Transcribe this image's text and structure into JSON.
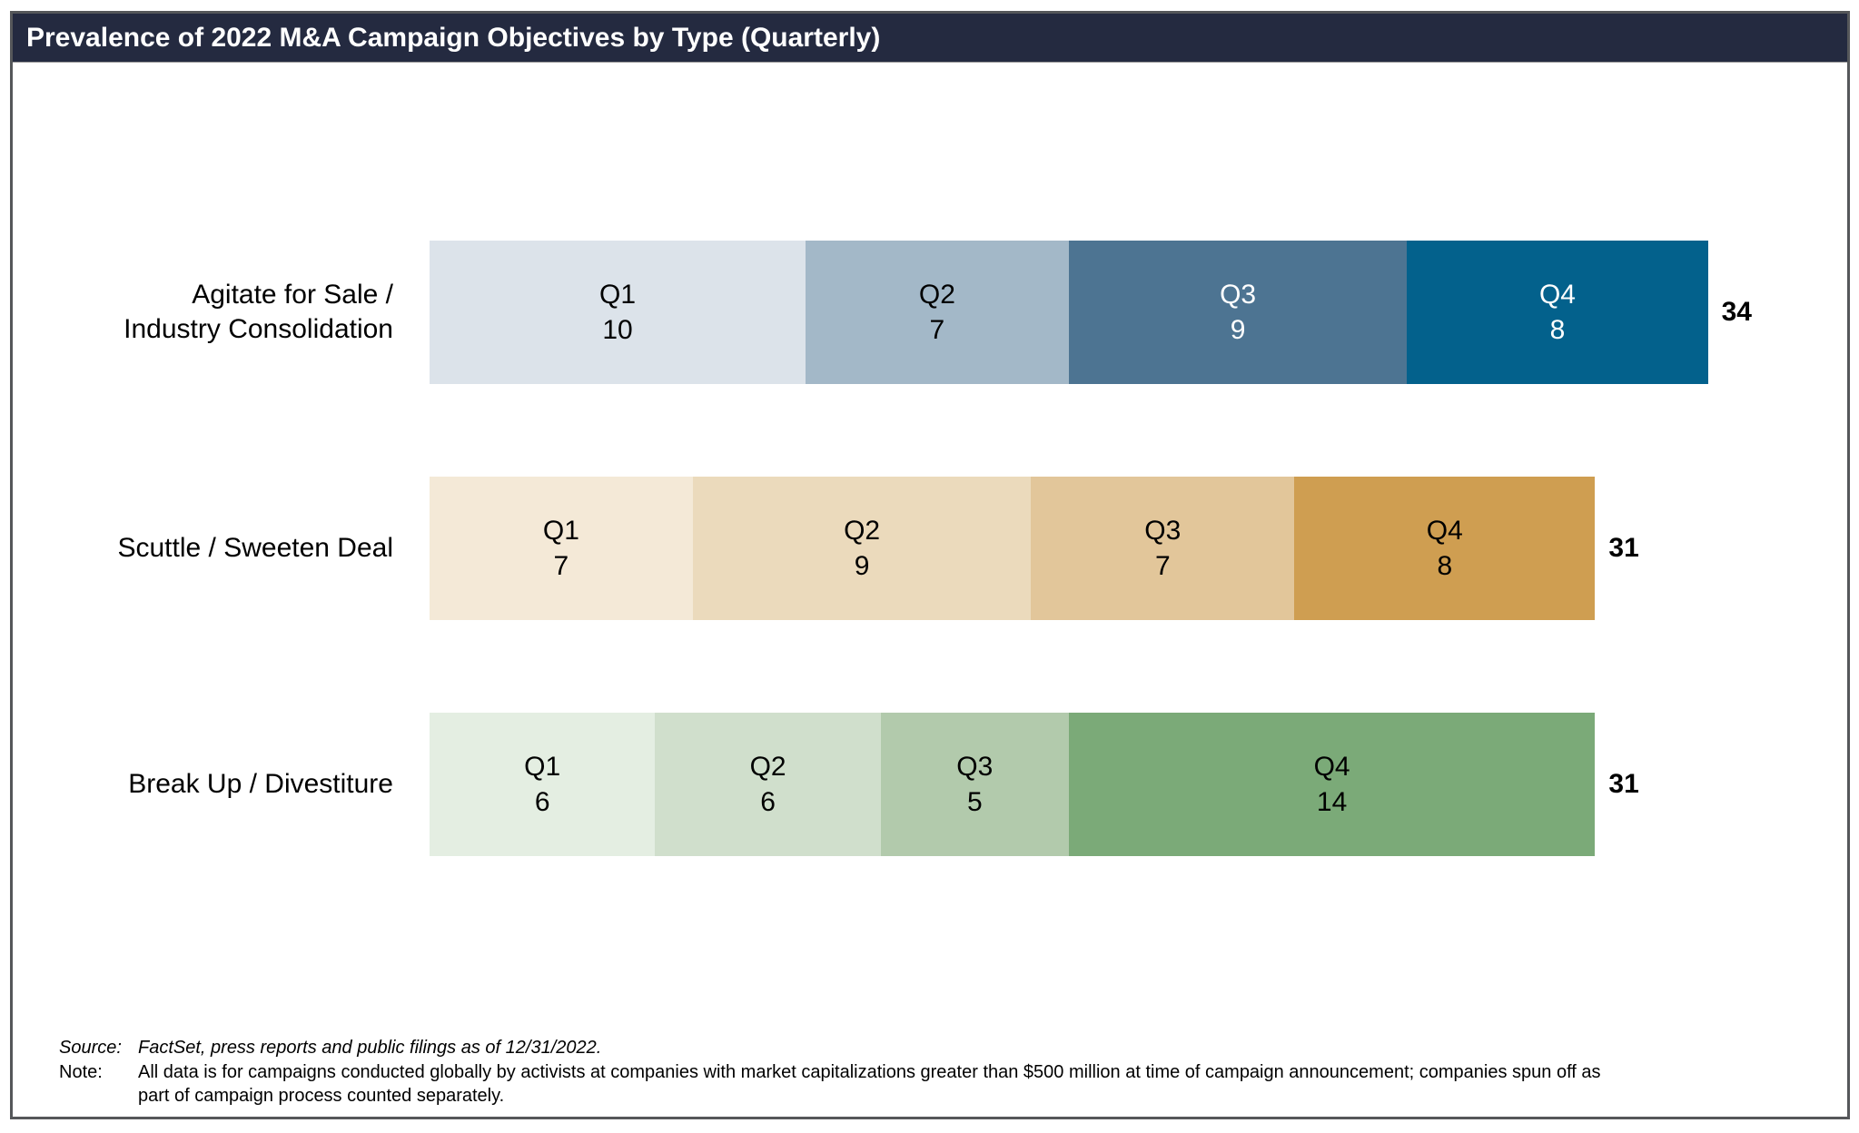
{
  "title": "Prevalence of 2022 M&A Campaign Objectives by Type (Quarterly)",
  "footer": {
    "source_label": "Source:",
    "source_text": "FactSet, press reports and public filings as of 12/31/2022.",
    "note_label": "Note:",
    "note_line1": "All data is for campaigns conducted globally by activists at companies with market capitalizations greater than $500 million at time of campaign announcement; companies spun off as",
    "note_line2": "part of campaign process counted separately."
  },
  "colors": {
    "title_bar_background": "#242a40",
    "title_text": "#ffffff",
    "frame_border": "#55575a"
  },
  "chart_data": {
    "type": "bar",
    "variant": "horizontal-stacked",
    "title": "Prevalence of 2022 M&A Campaign Objectives by Type (Quarterly)",
    "categories": [
      "Agitate for Sale / Industry Consolidation",
      "Scuttle / Sweeten Deal",
      "Break Up / Divestiture"
    ],
    "series": [
      {
        "name": "Q1",
        "values": [
          10,
          7,
          6
        ]
      },
      {
        "name": "Q2",
        "values": [
          7,
          9,
          6
        ]
      },
      {
        "name": "Q3",
        "values": [
          9,
          7,
          5
        ]
      },
      {
        "name": "Q4",
        "values": [
          8,
          8,
          14
        ]
      }
    ],
    "totals": [
      34,
      31,
      31
    ],
    "legend_position": "none",
    "grid": false,
    "rows": [
      {
        "label_lines": [
          "Agitate for Sale /",
          "Industry Consolidation"
        ],
        "total": "34",
        "segments": [
          {
            "quarter": "Q1",
            "value": 10,
            "color": "#dce3ea",
            "text_color": "#000000"
          },
          {
            "quarter": "Q2",
            "value": 7,
            "color": "#a3b8c8",
            "text_color": "#000000"
          },
          {
            "quarter": "Q3",
            "value": 9,
            "color": "#4d7492",
            "text_color": "#ffffff"
          },
          {
            "quarter": "Q4",
            "value": 8,
            "color": "#03618c",
            "text_color": "#ffffff"
          }
        ]
      },
      {
        "label_lines": [
          "Scuttle / Sweeten Deal"
        ],
        "total": "31",
        "segments": [
          {
            "quarter": "Q1",
            "value": 7,
            "color": "#f4e9d7",
            "text_color": "#000000"
          },
          {
            "quarter": "Q2",
            "value": 9,
            "color": "#ebdabc",
            "text_color": "#000000"
          },
          {
            "quarter": "Q3",
            "value": 7,
            "color": "#e2c69a",
            "text_color": "#000000"
          },
          {
            "quarter": "Q4",
            "value": 8,
            "color": "#cf9e51",
            "text_color": "#000000"
          }
        ]
      },
      {
        "label_lines": [
          "Break Up / Divestiture"
        ],
        "total": "31",
        "segments": [
          {
            "quarter": "Q1",
            "value": 6,
            "color": "#e4eee2",
            "text_color": "#000000"
          },
          {
            "quarter": "Q2",
            "value": 6,
            "color": "#d0dfcc",
            "text_color": "#000000"
          },
          {
            "quarter": "Q3",
            "value": 5,
            "color": "#b2caac",
            "text_color": "#000000"
          },
          {
            "quarter": "Q4",
            "value": 14,
            "color": "#7baa78",
            "text_color": "#000000"
          }
        ]
      }
    ]
  }
}
